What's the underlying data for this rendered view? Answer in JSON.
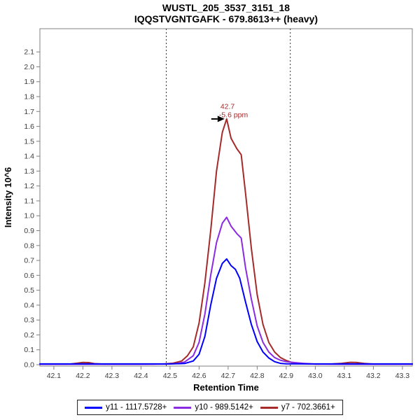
{
  "window": {
    "title_line1": "WUSTL_205_3537_3151_18",
    "title_line2": "IQQSTVGNTGAFK - 679.8613++ (heavy)"
  },
  "colors": {
    "axis": "#808080",
    "tick_text": "#3c3c3c",
    "boundary": "#333333",
    "background": "#ffffff"
  },
  "chart_data": {
    "type": "line",
    "xlabel": "Retention Time",
    "ylabel": "Intensity 10^6",
    "grid": false,
    "legend_position": "bottom-center",
    "xlim": [
      42.052,
      43.334
    ],
    "ylim": [
      0,
      2.176
    ],
    "x_ticks": [
      "42.1",
      "42.2",
      "42.3",
      "42.4",
      "42.5",
      "42.6",
      "42.7",
      "42.8",
      "42.9",
      "43.0",
      "43.1",
      "43.2",
      "43.3"
    ],
    "y_ticks": [
      "0.0",
      "0.1",
      "0.2",
      "0.3",
      "0.4",
      "0.5",
      "0.6",
      "0.7",
      "0.8",
      "0.9",
      "1.0",
      "1.1",
      "1.2",
      "1.3",
      "1.4",
      "1.5",
      "1.6",
      "1.7",
      "1.8",
      "1.9",
      "2.0",
      "2.1"
    ],
    "peak_boundaries": [
      42.487,
      42.914
    ],
    "annotation": {
      "rt_label": "42.7",
      "ppm_label": "-5.6 ppm",
      "rt": 42.695,
      "intensity": 1.65,
      "color": "#A52A2A"
    },
    "series": [
      {
        "id": "y7",
        "name": "y7 - 702.3661+",
        "color": "#A52A2A",
        "points": [
          [
            42.052,
            0.004
          ],
          [
            42.1,
            0.004
          ],
          [
            42.14,
            0.004
          ],
          [
            42.16,
            0.005
          ],
          [
            42.18,
            0.01
          ],
          [
            42.2,
            0.015
          ],
          [
            42.22,
            0.014
          ],
          [
            42.24,
            0.007
          ],
          [
            42.27,
            0.004
          ],
          [
            42.35,
            0.004
          ],
          [
            42.44,
            0.004
          ],
          [
            42.48,
            0.005
          ],
          [
            42.51,
            0.01
          ],
          [
            42.54,
            0.025
          ],
          [
            42.56,
            0.06
          ],
          [
            42.58,
            0.12
          ],
          [
            42.6,
            0.28
          ],
          [
            42.62,
            0.55
          ],
          [
            42.64,
            0.9
          ],
          [
            42.66,
            1.3
          ],
          [
            42.68,
            1.56
          ],
          [
            42.695,
            1.65
          ],
          [
            42.71,
            1.52
          ],
          [
            42.73,
            1.45
          ],
          [
            42.745,
            1.41
          ],
          [
            42.76,
            1.15
          ],
          [
            42.78,
            0.78
          ],
          [
            42.8,
            0.47
          ],
          [
            42.82,
            0.27
          ],
          [
            42.84,
            0.15
          ],
          [
            42.86,
            0.085
          ],
          [
            42.88,
            0.048
          ],
          [
            42.9,
            0.028
          ],
          [
            42.92,
            0.014
          ],
          [
            42.95,
            0.007
          ],
          [
            43.0,
            0.004
          ],
          [
            43.06,
            0.005
          ],
          [
            43.09,
            0.009
          ],
          [
            43.12,
            0.016
          ],
          [
            43.14,
            0.015
          ],
          [
            43.17,
            0.008
          ],
          [
            43.2,
            0.004
          ],
          [
            43.27,
            0.004
          ],
          [
            43.334,
            0.004
          ]
        ]
      },
      {
        "id": "y10",
        "name": "y10 - 989.5142+",
        "color": "#8A2BE2",
        "points": [
          [
            42.052,
            0.003
          ],
          [
            42.2,
            0.003
          ],
          [
            42.4,
            0.003
          ],
          [
            42.48,
            0.004
          ],
          [
            42.52,
            0.007
          ],
          [
            42.55,
            0.018
          ],
          [
            42.58,
            0.06
          ],
          [
            42.6,
            0.15
          ],
          [
            42.62,
            0.34
          ],
          [
            42.64,
            0.6
          ],
          [
            42.66,
            0.82
          ],
          [
            42.68,
            0.95
          ],
          [
            42.695,
            0.99
          ],
          [
            42.71,
            0.93
          ],
          [
            42.73,
            0.88
          ],
          [
            42.745,
            0.85
          ],
          [
            42.76,
            0.65
          ],
          [
            42.78,
            0.44
          ],
          [
            42.8,
            0.26
          ],
          [
            42.82,
            0.15
          ],
          [
            42.84,
            0.085
          ],
          [
            42.86,
            0.048
          ],
          [
            42.88,
            0.03
          ],
          [
            42.9,
            0.02
          ],
          [
            42.93,
            0.014
          ],
          [
            42.96,
            0.009
          ],
          [
            43.0,
            0.004
          ],
          [
            43.1,
            0.003
          ],
          [
            43.334,
            0.003
          ]
        ]
      },
      {
        "id": "y11",
        "name": "y11 - 1117.5728+",
        "color": "#0000FF",
        "points": [
          [
            42.052,
            0.005
          ],
          [
            42.3,
            0.005
          ],
          [
            42.5,
            0.005
          ],
          [
            42.55,
            0.008
          ],
          [
            42.58,
            0.025
          ],
          [
            42.6,
            0.07
          ],
          [
            42.62,
            0.19
          ],
          [
            42.64,
            0.4
          ],
          [
            42.66,
            0.58
          ],
          [
            42.68,
            0.68
          ],
          [
            42.695,
            0.71
          ],
          [
            42.71,
            0.665
          ],
          [
            42.725,
            0.64
          ],
          [
            42.74,
            0.58
          ],
          [
            42.76,
            0.42
          ],
          [
            42.78,
            0.27
          ],
          [
            42.8,
            0.155
          ],
          [
            42.82,
            0.085
          ],
          [
            42.84,
            0.045
          ],
          [
            42.86,
            0.02
          ],
          [
            42.88,
            0.009
          ],
          [
            42.9,
            0.006
          ],
          [
            43.0,
            0.005
          ],
          [
            43.334,
            0.005
          ]
        ]
      }
    ],
    "legend": [
      {
        "id": "y11",
        "label": "y11 - 1117.5728+",
        "color": "#0000FF"
      },
      {
        "id": "y10",
        "label": "y10 - 989.5142+",
        "color": "#8A2BE2"
      },
      {
        "id": "y7",
        "label": "y7 - 702.3661+",
        "color": "#A52A2A"
      }
    ]
  }
}
